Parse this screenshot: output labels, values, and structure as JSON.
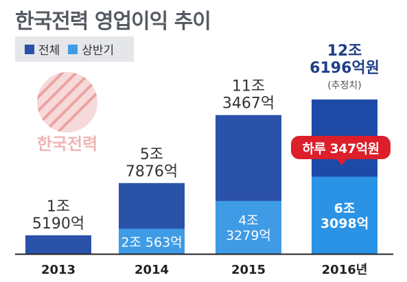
{
  "title": "한국전력 영업이익 추이",
  "legend": [
    {
      "label": "전체",
      "color": "#2a52a8"
    },
    {
      "label": "상반기",
      "color": "#3f9be5"
    }
  ],
  "logo_text": "한국전력",
  "colors": {
    "total": "#2a52a8",
    "half": "#3f9be5",
    "highlight_total": "#1c4aa6",
    "highlight_half": "#2b93e6",
    "callout": "#dc1f2b"
  },
  "chart_data": {
    "type": "bar",
    "unit": "억원",
    "categories": [
      "2013",
      "2014",
      "2015",
      "2016년"
    ],
    "series": [
      {
        "name": "전체",
        "values": [
          15190,
          57876,
          113467,
          126196
        ]
      },
      {
        "name": "상반기",
        "values": [
          null,
          20563,
          43279,
          63098
        ]
      }
    ],
    "total_labels": [
      [
        "1조",
        "5190억"
      ],
      [
        "5조",
        "7876억"
      ],
      [
        "11조",
        "3467억"
      ],
      [
        "12조",
        "6196억원"
      ]
    ],
    "half_labels": [
      [],
      [
        "2조 563억"
      ],
      [
        "4조",
        "3279억"
      ],
      [
        "6조",
        "3098억"
      ]
    ],
    "estimate_note": "(추정치)",
    "callout": "하루 347억원"
  }
}
